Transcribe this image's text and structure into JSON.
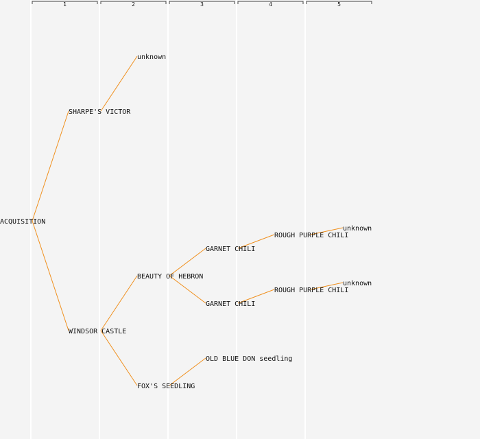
{
  "generations": [
    "1",
    "2",
    "3",
    "4",
    "5"
  ],
  "colors": {
    "background": "#f4f4f4",
    "column_line": "#ffffff",
    "edge": "#f0901e",
    "bracket": "#444444",
    "text": "#111111"
  },
  "nodes": [
    {
      "id": "n0",
      "label": "ACQUISITION",
      "gen": 0
    },
    {
      "id": "n1",
      "label": "SHARPE'S VICTOR",
      "gen": 1
    },
    {
      "id": "n2",
      "label": "WINDSOR CASTLE",
      "gen": 1
    },
    {
      "id": "n3",
      "label": "unknown",
      "gen": 2
    },
    {
      "id": "n4",
      "label": "BEAUTY OF HEBRON",
      "gen": 2
    },
    {
      "id": "n5",
      "label": "FOX'S SEEDLING",
      "gen": 2
    },
    {
      "id": "n6",
      "label": "GARNET CHILI",
      "gen": 3
    },
    {
      "id": "n7",
      "label": "GARNET CHILI",
      "gen": 3
    },
    {
      "id": "n8",
      "label": "OLD BLUE DON seedling",
      "gen": 3
    },
    {
      "id": "n9",
      "label": "ROUGH PURPLE CHILI",
      "gen": 4
    },
    {
      "id": "n10",
      "label": "ROUGH PURPLE CHILI",
      "gen": 4
    },
    {
      "id": "n11",
      "label": "unknown",
      "gen": 5
    },
    {
      "id": "n12",
      "label": "unknown",
      "gen": 5
    }
  ],
  "edges": [
    [
      "n0",
      "n1"
    ],
    [
      "n0",
      "n2"
    ],
    [
      "n1",
      "n3"
    ],
    [
      "n2",
      "n4"
    ],
    [
      "n2",
      "n5"
    ],
    [
      "n4",
      "n6"
    ],
    [
      "n4",
      "n7"
    ],
    [
      "n5",
      "n8"
    ],
    [
      "n6",
      "n9"
    ],
    [
      "n7",
      "n10"
    ],
    [
      "n9",
      "n11"
    ],
    [
      "n10",
      "n12"
    ]
  ]
}
